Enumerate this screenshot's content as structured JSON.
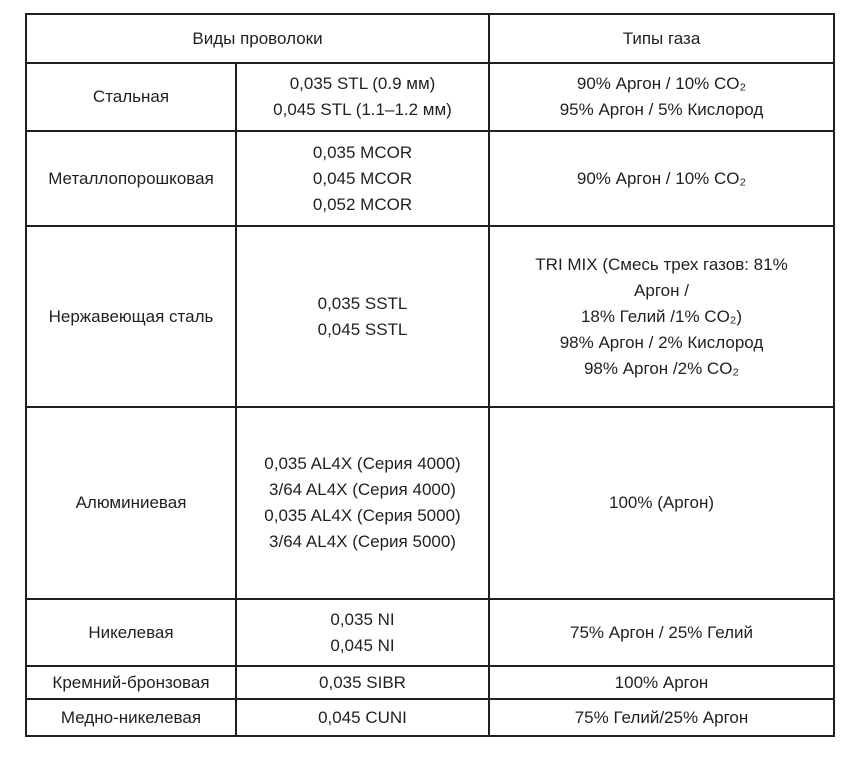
{
  "table": {
    "header": {
      "wire_types": "Виды проволоки",
      "gas_types": "Типы газа"
    },
    "rows": [
      {
        "wire": "Стальная",
        "sizes": [
          "0,035 STL (0.9 мм)",
          "0,045 STL (1.1–1.2 мм)"
        ],
        "gases": [
          "90% Аргон / 10% CO₂",
          "95% Аргон / 5% Кислород"
        ]
      },
      {
        "wire": "Металлопорошковая",
        "sizes": [
          "0,035 MCOR",
          "0,045 MCOR",
          "0,052 MCOR"
        ],
        "gases": [
          "90% Аргон / 10% CO₂"
        ]
      },
      {
        "wire": "Нержавеющая сталь",
        "sizes": [
          "0,035 SSTL",
          "0,045 SSTL"
        ],
        "gases": [
          "TRI MIX (Смесь трех газов: 81%",
          "Аргон /",
          "18% Гелий /1% CO₂)",
          "98% Аргон / 2% Кислород",
          "98% Аргон /2% CO₂"
        ]
      },
      {
        "wire": "Алюминиевая",
        "sizes": [
          "0,035 AL4X (Серия 4000)",
          "3/64 AL4X (Серия 4000)",
          "0,035 AL4X (Серия 5000)",
          "3/64 AL4X (Серия 5000)"
        ],
        "gases": [
          "100% (Аргон)"
        ]
      },
      {
        "wire": "Никелевая",
        "sizes": [
          "0,035 NI",
          "0,045 NI"
        ],
        "gases": [
          "75% Аргон / 25% Гелий"
        ]
      },
      {
        "wire": "Кремний-бронзовая",
        "sizes": [
          "0,035 SIBR"
        ],
        "gases": [
          "100% Аргон"
        ]
      },
      {
        "wire": "Медно-никелевая",
        "sizes": [
          "0,045 CUNI"
        ],
        "gases": [
          "75% Гелий/25% Аргон"
        ]
      }
    ]
  }
}
